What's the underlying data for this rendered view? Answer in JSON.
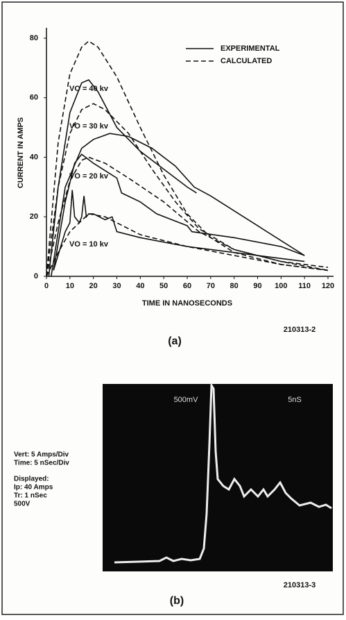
{
  "chart_data": {
    "type": "line",
    "xlabel": "TIME IN NANOSECONDS",
    "ylabel": "CURRENT IN AMPS",
    "xlim": [
      0,
      120
    ],
    "xticks": [
      0,
      10,
      20,
      30,
      40,
      50,
      60,
      70,
      80,
      90,
      100,
      110,
      120
    ],
    "ylim": [
      0,
      80
    ],
    "yticks": [
      0,
      20,
      40,
      60,
      80
    ],
    "legend": [
      {
        "name": "EXPERIMENTAL",
        "dash": "solid"
      },
      {
        "name": "CALCULATED",
        "dash": "dashed"
      }
    ],
    "color": "#111111",
    "groups": [
      {
        "label": "VO = 40 kv",
        "series": [
          {
            "style": 0,
            "x": [
              1,
              5,
              10,
              15,
              18,
              22,
              30,
              40,
              50,
              60,
              64
            ],
            "values": [
              0,
              30,
              55,
              65,
              66,
              62,
              50,
              42,
              36,
              30,
              28
            ]
          },
          {
            "style": 1,
            "x": [
              0,
              5,
              10,
              15,
              18,
              22,
              30,
              40,
              50,
              60,
              70,
              80,
              100,
              120
            ],
            "values": [
              0,
              45,
              68,
              77,
              79,
              77,
              67,
              50,
              34,
              21,
              13,
              8,
              4,
              2
            ]
          }
        ]
      },
      {
        "label": "VO = 30 kv",
        "series": [
          {
            "style": 0,
            "x": [
              2,
              8,
              15,
              20,
              27,
              35,
              45,
              55,
              63,
              70,
              80,
              90,
              100,
              110
            ],
            "values": [
              0,
              30,
              43,
              46,
              48,
              47,
              43,
              37,
              30,
              27,
              22,
              17,
              12,
              7
            ]
          },
          {
            "style": 1,
            "x": [
              0,
              5,
              10,
              15,
              20,
              25,
              35,
              45,
              55,
              65,
              80,
              100,
              120
            ],
            "values": [
              0,
              30,
              48,
              56,
              58,
              56,
              48,
              36,
              25,
              16,
              9,
              5,
              2
            ]
          }
        ]
      },
      {
        "label": "VO = 20 kv",
        "series": [
          {
            "style": 0,
            "x": [
              3,
              8,
              12,
              15,
              20,
              30,
              32,
              40,
              47,
              60,
              62,
              80,
              100,
              110
            ],
            "values": [
              2,
              25,
              38,
              41,
              38,
              33,
              28,
              25,
              21,
              17,
              15,
              13,
              10,
              7
            ]
          },
          {
            "style": 1,
            "x": [
              0,
              5,
              10,
              15,
              18,
              25,
              35,
              50,
              65,
              80,
              100,
              120
            ],
            "values": [
              0,
              18,
              32,
              39,
              40,
              38,
              33,
              25,
              15,
              9,
              5,
              3
            ]
          }
        ]
      },
      {
        "label": "VO = 10 kv",
        "series": [
          {
            "style": 0,
            "x": [
              3,
              8,
              10,
              11,
              12,
              14,
              15,
              16,
              17,
              18,
              20,
              25,
              28,
              30,
              40,
              60,
              80,
              100,
              110
            ],
            "values": [
              2,
              15,
              18,
              29,
              20,
              18,
              20,
              27,
              20,
              21,
              21,
              19,
              20,
              15,
              13,
              10,
              8,
              6,
              5
            ]
          },
          {
            "style": 1,
            "x": [
              0,
              5,
              10,
              18,
              25,
              40,
              60,
              80,
              100,
              120
            ],
            "values": [
              0,
              8,
              15,
              21,
              20,
              14,
              10,
              7,
              4,
              2
            ]
          }
        ]
      }
    ],
    "figure_id": "210313-2",
    "caption": "(a)"
  },
  "scope": {
    "vertical_label": "500mV",
    "time_label": "5nS",
    "notes": [
      "Vert: 5 Amps/Div",
      "Time: 5 nSec/Div",
      "Displayed:",
      "Ip: 40 Amps",
      "Tr: 1 nSec",
      "500V"
    ],
    "figure_id": "210313-3",
    "caption": "(b)"
  }
}
